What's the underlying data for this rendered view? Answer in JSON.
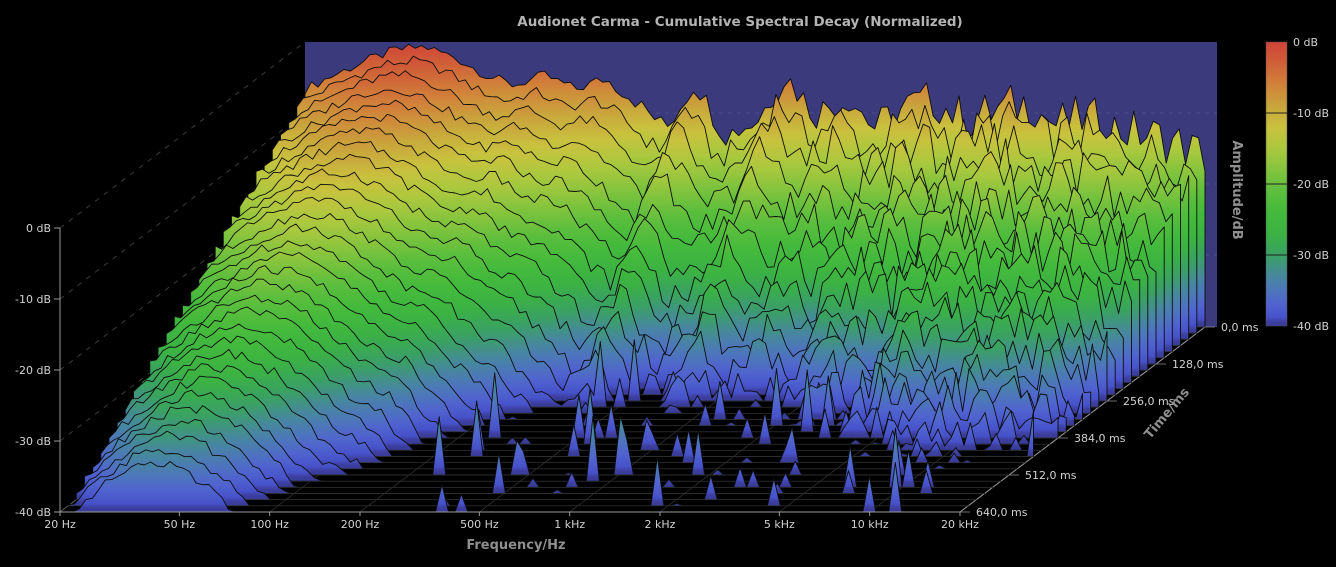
{
  "window": {
    "background": "#000000"
  },
  "chart_data": {
    "type": "waterfall",
    "title": "Audionet Carma - Cumulative Spectral Decay (Normalized)",
    "xlabel": "Frequency/Hz",
    "ylabel": "Amplitude/dB",
    "zlabel": "Time/ms",
    "x_scale": "log",
    "x_range_hz": [
      20,
      20000
    ],
    "x_ticks": [
      {
        "label": "20 Hz",
        "hz": 20
      },
      {
        "label": "50 Hz",
        "hz": 50
      },
      {
        "label": "100 Hz",
        "hz": 100
      },
      {
        "label": "200 Hz",
        "hz": 200
      },
      {
        "label": "500 Hz",
        "hz": 500
      },
      {
        "label": "1 kHz",
        "hz": 1000
      },
      {
        "label": "2 kHz",
        "hz": 2000
      },
      {
        "label": "5 kHz",
        "hz": 5000
      },
      {
        "label": "10 kHz",
        "hz": 10000
      },
      {
        "label": "20 kHz",
        "hz": 20000
      }
    ],
    "y_range_db": [
      -40,
      0
    ],
    "y_ticks": [
      {
        "label": "0 dB",
        "db": 0
      },
      {
        "label": "-10 dB",
        "db": -10
      },
      {
        "label": "-20 dB",
        "db": -20
      },
      {
        "label": "-30 dB",
        "db": -30
      },
      {
        "label": "-40 dB",
        "db": -40
      }
    ],
    "z_range_ms": [
      0,
      640
    ],
    "z_ticks": [
      {
        "label": "0,0 ms",
        "ms": 0
      },
      {
        "label": "128,0 ms",
        "ms": 128
      },
      {
        "label": "256,0 ms",
        "ms": 256
      },
      {
        "label": "384,0 ms",
        "ms": 384
      },
      {
        "label": "512,0 ms",
        "ms": 512
      },
      {
        "label": "640,0 ms",
        "ms": 640
      }
    ],
    "slice_count": 31,
    "slice_step_ms": 21.3333,
    "back_wall_color": "#3a3a7c",
    "colorbar": {
      "ticks": [
        "0 dB",
        "-10 dB",
        "-20 dB",
        "-30 dB",
        "-40 dB"
      ],
      "colormap": [
        {
          "db": 0,
          "color": "#d04238"
        },
        {
          "db": -3,
          "color": "#d06038"
        },
        {
          "db": -6,
          "color": "#d1823a"
        },
        {
          "db": -9,
          "color": "#c9a43c"
        },
        {
          "db": -12,
          "color": "#c9c23e"
        },
        {
          "db": -15,
          "color": "#abc83e"
        },
        {
          "db": -18,
          "color": "#84c43d"
        },
        {
          "db": -21,
          "color": "#5cbe3d"
        },
        {
          "db": -24,
          "color": "#44ba3c"
        },
        {
          "db": -27,
          "color": "#3bb243"
        },
        {
          "db": -30,
          "color": "#3aa163"
        },
        {
          "db": -33,
          "color": "#47879f"
        },
        {
          "db": -35,
          "color": "#4d76bb"
        },
        {
          "db": -37,
          "color": "#5063cf"
        },
        {
          "db": -38.8,
          "color": "#4752ca"
        },
        {
          "db": -39.4,
          "color": "#3d3f9f"
        },
        {
          "db": -40,
          "color": "#383b97"
        }
      ]
    },
    "surface": {
      "control_freqs_hz": [
        20,
        25,
        32,
        40,
        50,
        63,
        80,
        100,
        125,
        160,
        200,
        250,
        320,
        400,
        500,
        640,
        800,
        1000,
        1300,
        1600,
        2000,
        2500,
        3200,
        4000,
        5000,
        6400,
        8000,
        10000,
        13000,
        16000,
        20000
      ],
      "base_db": [
        -6.5,
        -4.5,
        -2.5,
        -1,
        -0.5,
        -2,
        -4.5,
        -6,
        -4.5,
        -6.5,
        -5,
        -8,
        -12,
        -5.5,
        -13,
        -11,
        -4.5,
        -10,
        -7.5,
        -12,
        -9,
        -8,
        -11,
        -9.5,
        -8.5,
        -11.5,
        -10.5,
        -12,
        -13,
        -14,
        -16
      ],
      "decay_db_per_100ms": [
        5.5,
        5.2,
        5.0,
        5.0,
        5.2,
        5.4,
        5.7,
        6.2,
        7.0,
        8.0,
        9.5,
        10.0,
        10.5,
        11.0,
        11.5,
        11.7,
        11.8,
        11.7,
        11.4,
        11.0,
        10.2,
        9.4,
        8.6,
        8.0,
        7.5,
        7.0,
        6.6,
        6.2,
        6.0,
        6.2,
        6.8
      ],
      "noise_db_low": 0.7,
      "noise_db_high": 3.4,
      "points_per_slice": 140
    }
  },
  "colors": {
    "title": "#b4b4b4",
    "axis_label": "#8f8f8f",
    "tick_label": "#d2d2d2",
    "dashed_grid": "#6a6a6a",
    "floor_grid": "#565656",
    "floor_edge": "#9a9a9a",
    "slice_outline": "#0d0d0d",
    "wall_grid": "#b8b8d8"
  }
}
